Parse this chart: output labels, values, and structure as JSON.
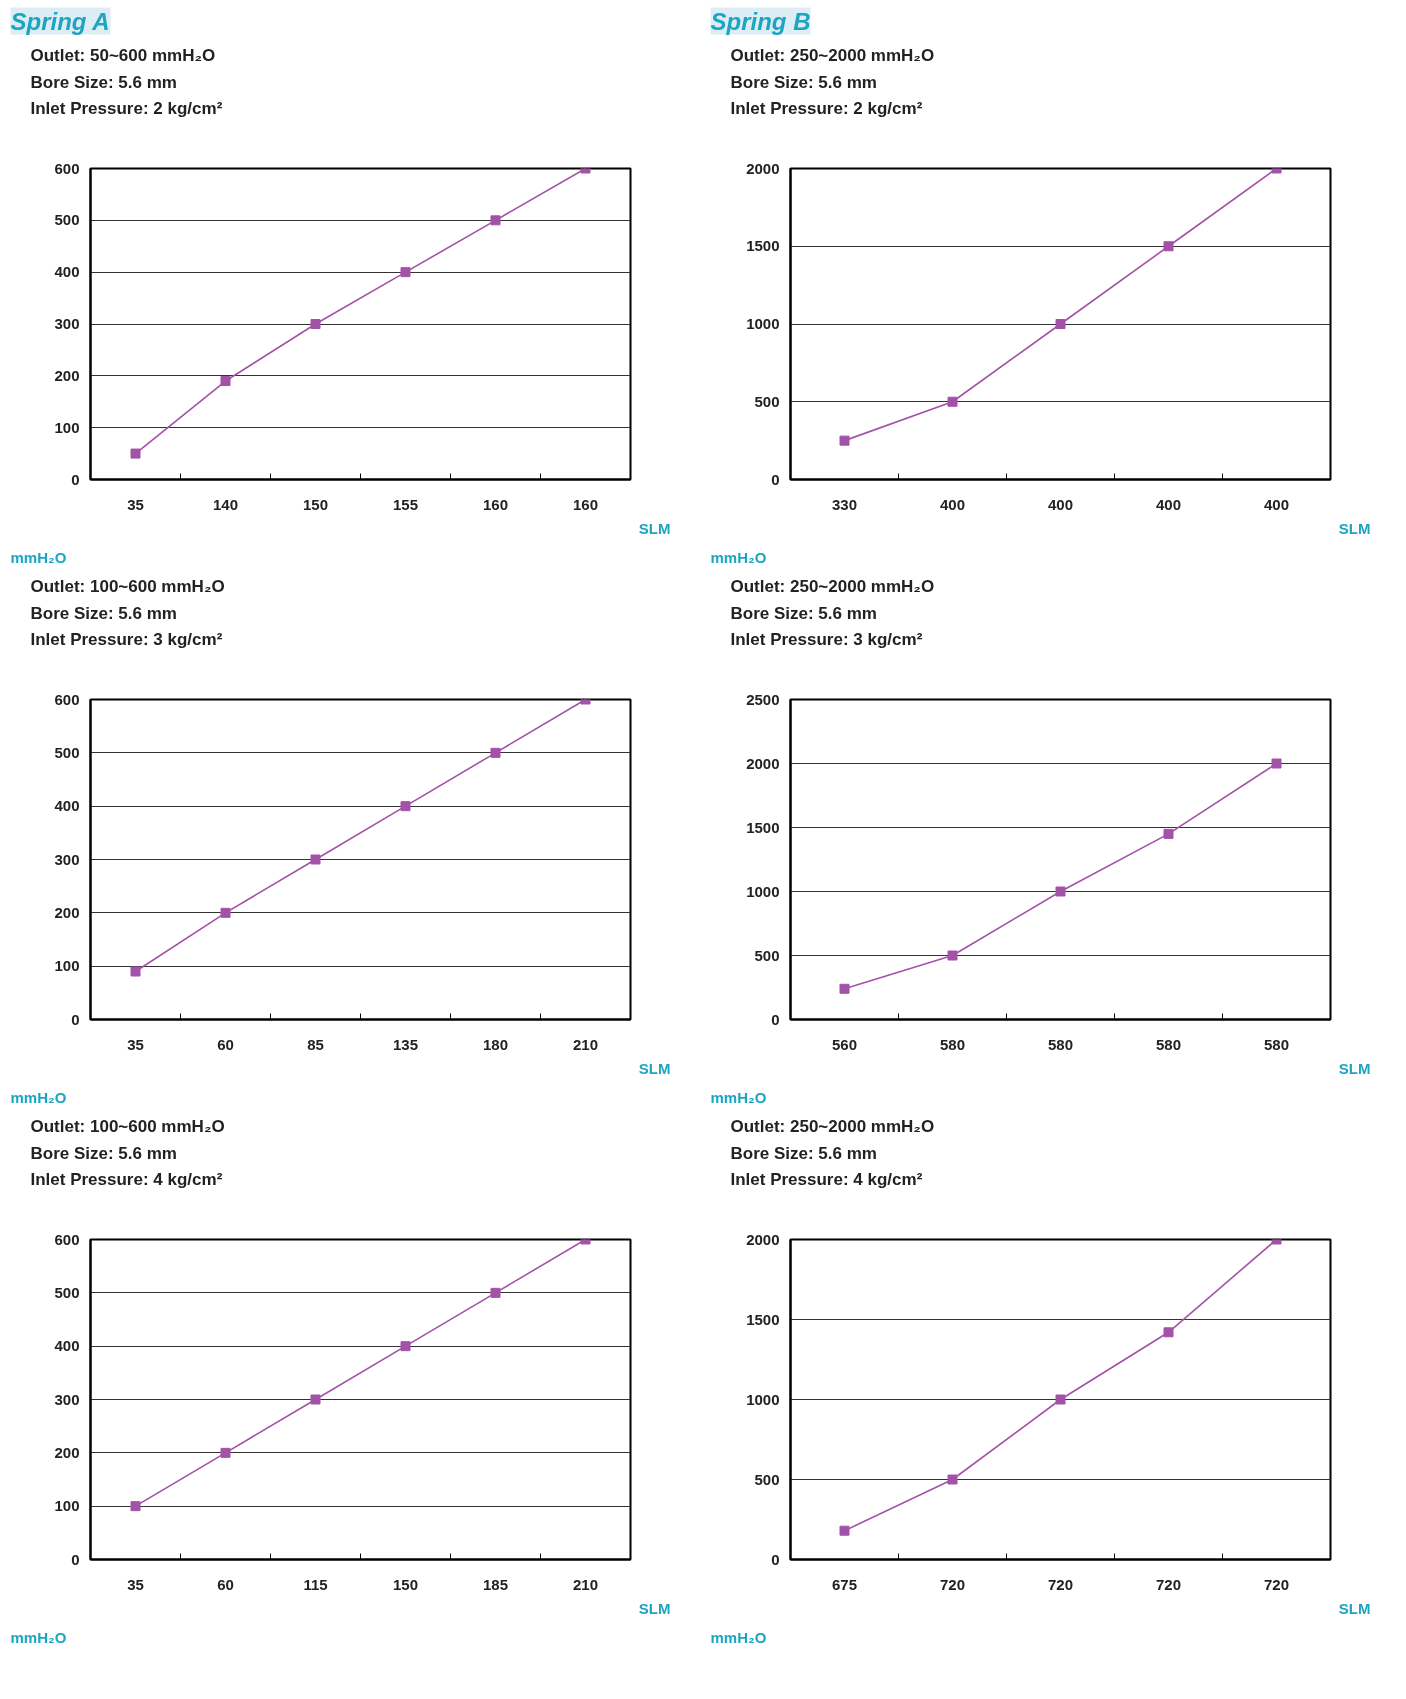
{
  "chart_data": [
    {
      "type": "line",
      "title": "Spring A",
      "subtitle": "Outlet: 50~600 mmH₂O\nBore Size: 5.6 mm\nInlet Pressure: 2 kg/cm²",
      "xlabel": "SLM",
      "ylabel": "mmH₂O",
      "categories": [
        "35",
        "140",
        "150",
        "155",
        "160",
        "160"
      ],
      "series": [
        {
          "color": "#a352a8",
          "values": [
            50,
            190,
            300,
            400,
            500,
            600
          ]
        }
      ],
      "marker": "square",
      "ylim": [
        0,
        600
      ],
      "yticks": [
        0,
        100,
        200,
        300,
        400,
        500,
        600
      ],
      "grid": "y"
    },
    {
      "type": "line",
      "title": "Spring B",
      "subtitle": "Outlet: 250~2000 mmH₂O\nBore Size: 5.6 mm\nInlet Pressure: 2 kg/cm²",
      "xlabel": "SLM",
      "ylabel": "mmH₂O",
      "categories": [
        "330",
        "400",
        "400",
        "400",
        "400"
      ],
      "series": [
        {
          "color": "#a352a8",
          "values": [
            250,
            500,
            1000,
            1500,
            2000
          ]
        }
      ],
      "marker": "square",
      "ylim": [
        0,
        2000
      ],
      "yticks": [
        0,
        500,
        1000,
        1500,
        2000
      ],
      "grid": "y"
    },
    {
      "type": "line",
      "subtitle": "Outlet: 100~600 mmH₂O\nBore Size: 5.6 mm\nInlet Pressure: 3 kg/cm²",
      "xlabel": "SLM",
      "ylabel": "mmH₂O",
      "categories": [
        "35",
        "60",
        "85",
        "135",
        "180",
        "210"
      ],
      "series": [
        {
          "color": "#a352a8",
          "values": [
            90,
            200,
            300,
            400,
            500,
            600
          ]
        }
      ],
      "marker": "square",
      "ylim": [
        0,
        600
      ],
      "yticks": [
        0,
        100,
        200,
        300,
        400,
        500,
        600
      ],
      "grid": "y"
    },
    {
      "type": "line",
      "subtitle": "Outlet: 250~2000 mmH₂O\nBore Size: 5.6 mm\nInlet Pressure: 3 kg/cm²",
      "xlabel": "SLM",
      "ylabel": "mmH₂O",
      "categories": [
        "560",
        "580",
        "580",
        "580",
        "580"
      ],
      "series": [
        {
          "color": "#a352a8",
          "values": [
            240,
            500,
            1000,
            1450,
            2000
          ]
        }
      ],
      "marker": "square",
      "ylim": [
        0,
        2500
      ],
      "yticks": [
        0,
        500,
        1000,
        1500,
        2000,
        2500
      ],
      "grid": "y"
    },
    {
      "type": "line",
      "subtitle": "Outlet: 100~600 mmH₂O\nBore Size: 5.6 mm\nInlet Pressure: 4 kg/cm²",
      "xlabel": "SLM",
      "ylabel": "mmH₂O",
      "categories": [
        "35",
        "60",
        "115",
        "150",
        "185",
        "210"
      ],
      "series": [
        {
          "color": "#a352a8",
          "values": [
            100,
            200,
            300,
            400,
            500,
            600
          ]
        }
      ],
      "marker": "square",
      "ylim": [
        0,
        600
      ],
      "yticks": [
        0,
        100,
        200,
        300,
        400,
        500,
        600
      ],
      "grid": "y"
    },
    {
      "type": "line",
      "subtitle": "Outlet: 250~2000 mmH₂O\nBore Size: 5.6 mm\nInlet Pressure: 4 kg/cm²",
      "xlabel": "SLM",
      "ylabel": "mmH₂O",
      "categories": [
        "675",
        "720",
        "720",
        "720",
        "720"
      ],
      "series": [
        {
          "color": "#a352a8",
          "values": [
            180,
            500,
            1000,
            1420,
            2000
          ]
        }
      ],
      "marker": "square",
      "ylim": [
        0,
        2000
      ],
      "yticks": [
        0,
        500,
        1000,
        1500,
        2000
      ],
      "grid": "y"
    }
  ]
}
